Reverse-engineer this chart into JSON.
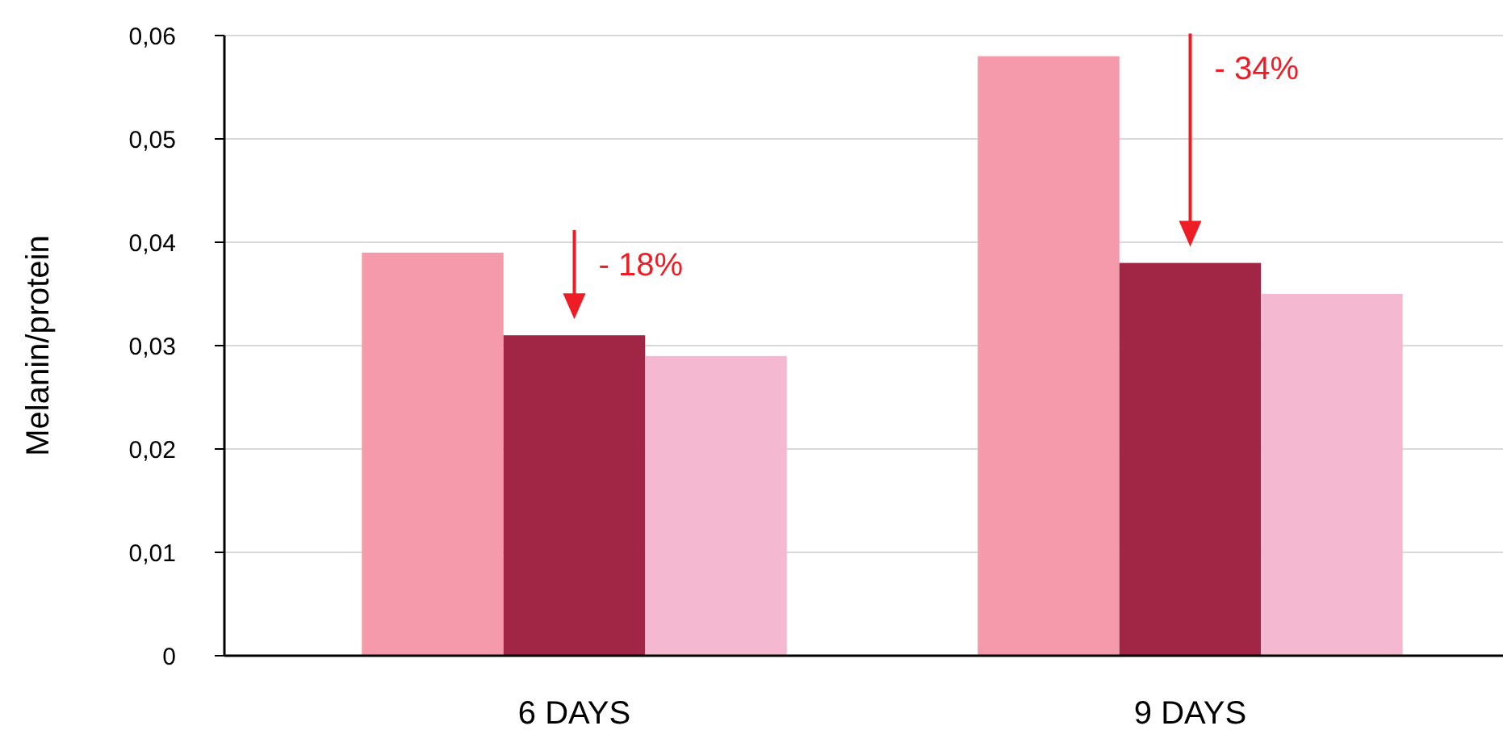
{
  "chart_data": {
    "type": "bar",
    "ylabel": "Melanin/protein",
    "categories": [
      "6 DAYS",
      "9 DAYS"
    ],
    "series": [
      {
        "color": "#f49aab",
        "values": [
          0.039,
          0.058
        ]
      },
      {
        "color": "#a12646",
        "values": [
          0.031,
          0.038
        ]
      },
      {
        "color": "#f4b8d0",
        "values": [
          0.029,
          0.035
        ]
      }
    ],
    "ylim": [
      0,
      0.06
    ],
    "yticks": [
      0,
      {
        "value": 0.01,
        "label": "0,01"
      },
      {
        "value": 0.02,
        "label": "0,02"
      },
      {
        "value": 0.03,
        "label": "0,03"
      },
      {
        "value": 0.04,
        "label": "0,04"
      },
      {
        "value": 0.05,
        "label": "0,05"
      },
      {
        "value": 0.06,
        "label": "0,06"
      }
    ],
    "grid": "y",
    "annotations": [
      "- 18%",
      "- 34%"
    ]
  }
}
